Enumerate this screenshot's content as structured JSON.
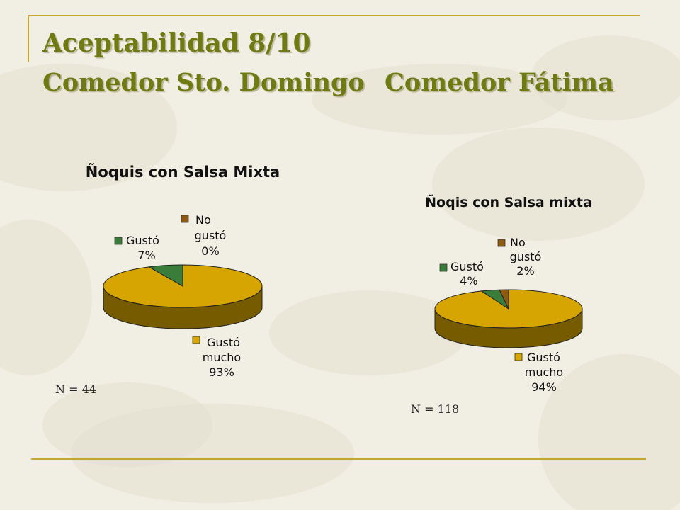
{
  "slide": {
    "title": "Aceptabilidad 8/10",
    "subtitle_left": "Comedor Sto. Domingo",
    "subtitle_right": "Comedor Fátima"
  },
  "colors": {
    "title": "#6e7a12",
    "rule": "#c7a732",
    "gusto_mucho": "#d6a502",
    "gusto": "#3a7d3a",
    "no_gusto": "#8f5a12"
  },
  "chart_data": [
    {
      "type": "pie",
      "title": "Ñoquis con Salsa Mixta",
      "sample_size": "N = 44",
      "slices": [
        {
          "label": "Gustó mucho",
          "value": 93,
          "label_lines": [
            "Gustó",
            "mucho",
            "93%"
          ]
        },
        {
          "label": "Gustó",
          "value": 7,
          "label_lines": [
            "Gustó",
            "7%"
          ]
        },
        {
          "label": "No gustó",
          "value": 0,
          "label_lines": [
            "No",
            "gustó",
            "0%"
          ]
        }
      ]
    },
    {
      "type": "pie",
      "title": "Ñoqis con Salsa mixta",
      "sample_size": "N = 118",
      "slices": [
        {
          "label": "Gustó mucho",
          "value": 94,
          "label_lines": [
            "Gustó",
            "mucho",
            "94%"
          ]
        },
        {
          "label": "Gustó",
          "value": 4,
          "label_lines": [
            "Gustó",
            "4%"
          ]
        },
        {
          "label": "No gustó",
          "value": 2,
          "label_lines": [
            "No",
            "gustó",
            "2%"
          ]
        }
      ]
    }
  ]
}
